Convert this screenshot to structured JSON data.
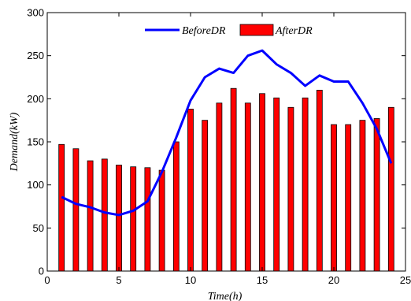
{
  "chart_data": {
    "type": "bar",
    "xlabel": "Time(h)",
    "ylabel": "Demand(kW)",
    "xlim": [
      0,
      25
    ],
    "ylim": [
      0,
      300
    ],
    "xticks": [
      0,
      5,
      10,
      15,
      20,
      25
    ],
    "yticks": [
      0,
      50,
      100,
      150,
      200,
      250,
      300
    ],
    "grid": false,
    "legend_position": "top-center",
    "x": [
      1,
      2,
      3,
      4,
      5,
      6,
      7,
      8,
      9,
      10,
      11,
      12,
      13,
      14,
      15,
      16,
      17,
      18,
      19,
      20,
      21,
      22,
      23,
      24
    ],
    "series": [
      {
        "name": "BeforeDR",
        "type": "line",
        "color": "#0000ff",
        "values": [
          86,
          78,
          74,
          68,
          65,
          70,
          81,
          115,
          155,
          198,
          225,
          235,
          230,
          250,
          256,
          240,
          230,
          215,
          227,
          220,
          220,
          195,
          165,
          125
        ]
      },
      {
        "name": "AfterDR",
        "type": "bar",
        "color": "#ff0000",
        "values": [
          147,
          142,
          128,
          130,
          123,
          121,
          120,
          117,
          150,
          188,
          175,
          195,
          212,
          195,
          206,
          201,
          190,
          201,
          210,
          170,
          170,
          175,
          177,
          190
        ]
      }
    ]
  }
}
